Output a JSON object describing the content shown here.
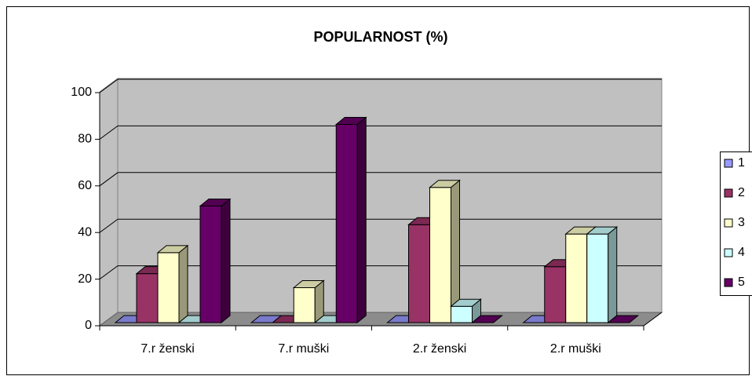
{
  "chart_data": {
    "type": "bar3d",
    "title": "POPULARNOST (%)",
    "categories": [
      "7.r ženski",
      "7.r muški",
      "2.r ženski",
      "2.r muški"
    ],
    "series": [
      {
        "name": "1",
        "color": "#9999ff",
        "values": [
          0,
          0,
          0,
          0
        ]
      },
      {
        "name": "2",
        "color": "#993366",
        "values": [
          21,
          0,
          42,
          24
        ]
      },
      {
        "name": "3",
        "color": "#ffffcc",
        "values": [
          30,
          15,
          58,
          38
        ]
      },
      {
        "name": "4",
        "color": "#ccffff",
        "values": [
          0,
          0,
          7,
          38
        ]
      },
      {
        "name": "5",
        "color": "#660066",
        "values": [
          50,
          85,
          0,
          0
        ]
      }
    ],
    "ylim": [
      0,
      100
    ],
    "yticks": [
      0,
      20,
      40,
      60,
      80,
      100
    ],
    "grid": true,
    "legend": "right"
  }
}
